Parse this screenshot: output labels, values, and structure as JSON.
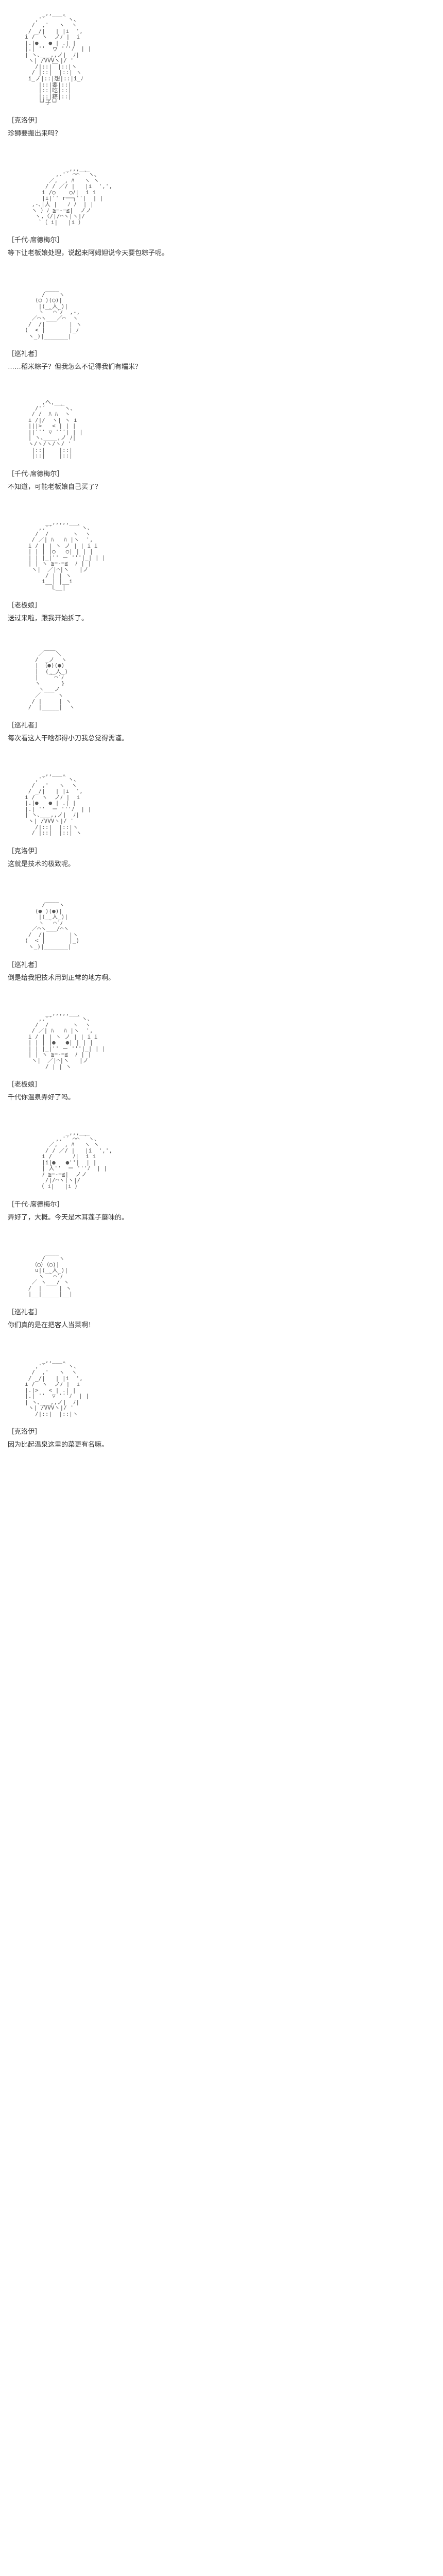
{
  "blocks": [
    {
      "ascii": "          _,,___,\n        ,'´     ｀ヽ、\n       /  ,'   ヽ  ヽ\n      / _/|   | |i  ',\n     i /  ヽ  ノﾉ |  i\n     |.|●   ● | .| |\n     |.| ''  ヮ '''ﾉ  | |\n     | ヽ､___,,ノ|  ﾉ|\n      ヽ| /VVVヽ|/ '\n        /|::|￣|::|ヽ\n       / |::|  |::| ヽ\n      i_ノ|::|想|::|i_ﾉ\n         |::|要|::|\n         |::|吃|::|\n         |::|粽|::|\n         └┘子└┘",
      "speaker": "［克洛伊］",
      "line": "珍狮要搬出来吗？"
    },
    {
      "ascii": "                 _,,,___\n              ,.'´ ⌒⌒ ｀ヽ、\n            ／,  , ﾊ   ヽ ヽ\n           / / ／/ |   |i  ',',\n          i /○    ○ﾉ|  i i\n          |i|'' r──┐''|  | |\n       ,-､|人 |   ﾉ ﾉ  | |\n       ヽ ）ﾉ ≧=‐=≦|  ノノ\n        ヽ,〈/|/⌒ヽ|ヽ|/\n         `（ i|   |i ）",
      "speaker": "［千代·席德梅尔］",
      "line": "等下让老板娘处理，说起来阿姆妲说今天要包粽子呢。"
    },
    {
      "ascii": "           ____\n          /    ヽ\n        (◯ )(◯)|\n         |(__人_)|\n         ヽ ｀⌒´ﾉ  ,-,\n       ／⌒ヽ___／⌒  ヽ\n      /  /|       | ヽ\n     (  < |       |_ﾉ\n      ヽ_)|_______|",
      "speaker": "［巡礼者］",
      "line": "……稻米粽子？但我怎么不记得我们有糯米？"
    },
    {
      "ascii": "          ,へ,___\n        /'´    ｀ヽ、\n       / /  ﾊ ﾊ  ヽ\n      i /|/  ヽ| ヽ i\n      |||>   < | | |\n      ||''' ▽ '''| | |\n      | ヽ､____,ノ ﾉ|\n      ヽ/ヽ/ヽ/ヽ/ '\n       |::|    |::|\n       |::|    |::|",
      "speaker": "［千代·席德梅尔］",
      "line": "不知道，可能老板娘自己买了？"
    },
    {
      "ascii": "           __,,,,,___\n         ,.'´       ｀ヽ、\n        /  /       ヽ  ヽ\n       / ／| ﾊ   ﾊ |ヽ  ',\n      i / | | ヽ ノ | | i i\n      | | | |○   ○| | | |\n      | | |_|'' ー '''|_| | |\n      | | ヽ ≧=‐=≦  ﾉ | |\n       ヽ|  ／|⌒|ヽ   |ノ\n           / | | ヽ\n          i__| |__i\n             L__|",
      "speaker": "［老板娘］",
      "line": "送过来啦，跟我开始拆了。"
    },
    {
      "ascii": "         ／￣￣＼\n        /  _ノ  ヽ\n        | （●)(●)\n        |  (__人_)\n        |   ｀⌒´ﾉ\n        ヽ      }\n         ヽ___ノ\n        ／     ヽ\n       / |     | ヽ\n      /  |_____|  ヽ",
      "speaker": "［巡礼者］",
      "line": "每次看这人干啥都得小刀我总觉得需谨。"
    },
    {
      "ascii": "          _,,___,\n        ,'´     ｀ヽ、\n       /  ,'   ヽ  ヽ\n      / _/|   | |i  ',\n     i /  ヽ  ノﾉ |  i\n     |.|●   ● | .| |\n     |.| ''  ー '''ﾉ  | |\n     | ヽ､___,,ノ|  ﾉ|\n      ヽ| /VVVヽ|/ '\n        /|::|  |::|ヽ\n       / |::|  |::| ヽ",
      "speaker": "［克洛伊］",
      "line": "这就是技术的极致呢。"
    },
    {
      "ascii": "           ____\n          /    ヽ\n        (● )(●)|\n         |(__人_)|\n         ヽ ｀⌒´ﾉ\n       ／⌒ヽ___/⌒ヽ\n      /  /|       |ヽ\n     (  < |       |_)\n      ヽ_)|_______|",
      "speaker": "［巡礼者］",
      "line": "倒是给我把技术用到正常的地方啊。"
    },
    {
      "ascii": "           __,,,,,___\n         ,.'´       ｀ヽ、\n        /  /       ヽ  ヽ\n       / ／| ﾊ   ﾊ |ヽ  ',\n      i / | | ヽ ノ | | i i\n      | | | |●   ●| | | |\n      | | |_|'' ー '''|_| | |\n      | | ヽ ≧=‐=≦  ﾉ | |\n       ヽ|  ／|⌒|ヽ   |ノ\n           / | | ヽ",
      "speaker": "［老板娘］",
      "line": "千代你温泉弄好了吗。"
    },
    {
      "ascii": "                 _,,,___\n              ,.'´ ⌒⌒ ｀ヽ、\n            ／,  , ﾊ   ヽ ヽ\n           / / ／/ |   |i  ',',\n          i /      ﾉ|  i i\n          |i|●   ●''|  | |\n          | 人''  ー '''ﾉ  | |\n          ﾉ ≧=‐=≦|  ノノ\n           /|/⌒ヽ|ヽ|/\n         （ i|   |i ）",
      "speaker": "［千代·席德梅尔］",
      "line": "弄好了，大概。今天是木耳莲子蘑味的。"
    },
    {
      "ascii": "           ____\n          /    ヽ\n       （◯）（◯)|\n        u|(__人_)|\n         ヽ ｀⌒´ﾉ\n       ／ ヽ___/ ヽ\n      /  |     | ヽ\n      |__|_____|__|",
      "speaker": "［巡礼者］",
      "line": "你们真的是在把客人当菜啊！"
    },
    {
      "ascii": "          _,,___,\n        ,'´     ｀ヽ、\n       /  ,'   ヽ  ヽ\n      / _/|   | |i  ',\n     i /  ヽ  ノﾉ |  i\n     |.|>   < | .| |\n     |.| ''  ▽ '''ﾉ  | |\n     | ヽ､___,,ノ|  ﾉ|\n      ヽ| /VVVヽ|/ '\n        /|::|  |::|ヽ",
      "speaker": "［克洛伊］",
      "line": "因为比起温泉这里的菜更有名嘛。"
    }
  ]
}
